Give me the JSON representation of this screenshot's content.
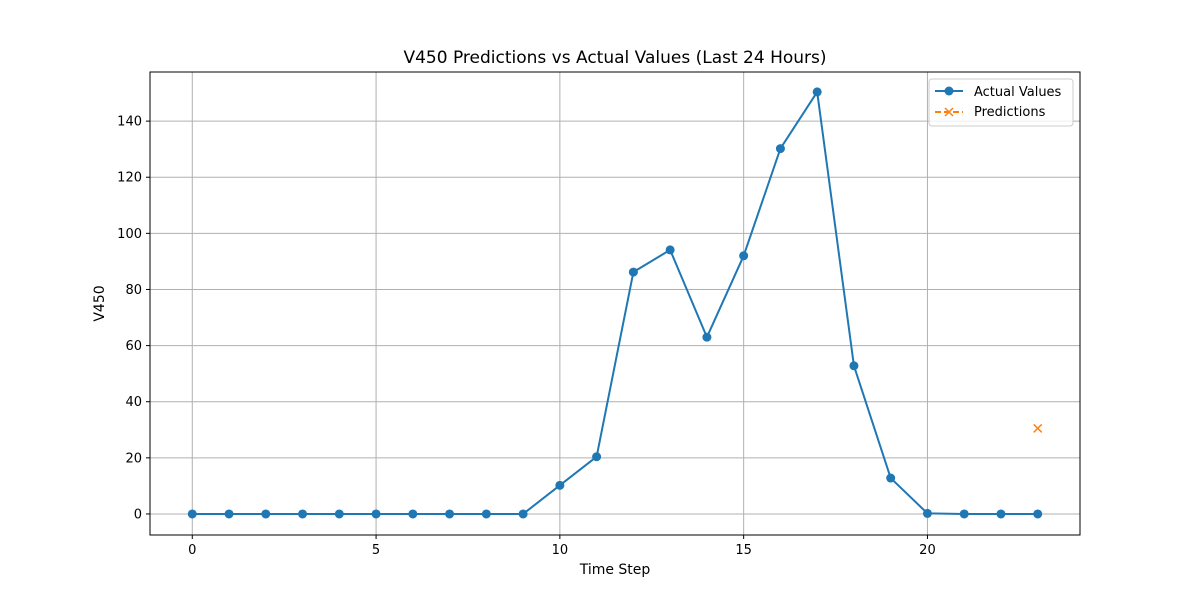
{
  "chart_data": {
    "type": "line",
    "title": "V450 Predictions vs Actual Values (Last 24 Hours)",
    "xlabel": "Time Step",
    "ylabel": "V450",
    "xlim": [
      -1.15,
      24.15
    ],
    "ylim": [
      -7.5,
      157.5
    ],
    "xticks": [
      0,
      5,
      10,
      15,
      20
    ],
    "yticks": [
      0,
      20,
      40,
      60,
      80,
      100,
      120,
      140
    ],
    "grid": true,
    "legend_position": "top-right",
    "series": [
      {
        "name": "Actual Values",
        "color": "#1f77b4",
        "marker": "circle",
        "linestyle": "solid",
        "x": [
          0,
          1,
          2,
          3,
          4,
          5,
          6,
          7,
          8,
          9,
          10,
          11,
          12,
          13,
          14,
          15,
          16,
          17,
          18,
          19,
          20,
          21,
          22,
          23
        ],
        "y": [
          0,
          0,
          0,
          0,
          0,
          0,
          0,
          0,
          0,
          0,
          10.2,
          20.4,
          86.2,
          94.1,
          63,
          92,
          130.2,
          150.4,
          52.8,
          12.8,
          0.2,
          0,
          0,
          0
        ]
      },
      {
        "name": "Predictions",
        "color": "#ff7f0e",
        "marker": "x",
        "linestyle": "dashed",
        "x": [
          23
        ],
        "y": [
          30.5
        ]
      }
    ]
  }
}
